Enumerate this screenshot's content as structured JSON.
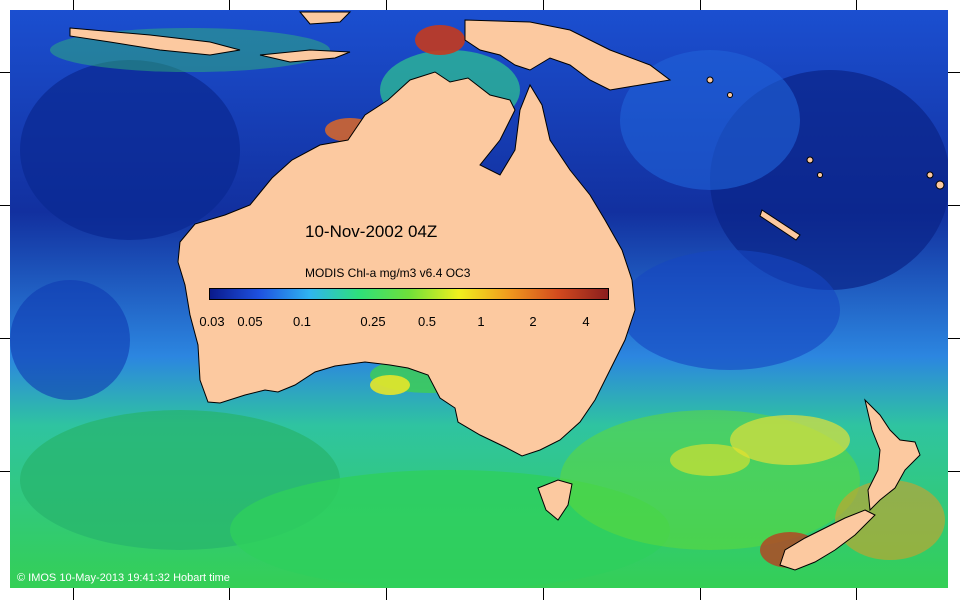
{
  "map": {
    "date_title": "10-Nov-2002 04Z",
    "colorbar": {
      "title": "MODIS Chl-a mg/m3 v6.4 OC3",
      "labels": [
        "0.03",
        "0.05",
        "0.1",
        "0.25",
        "0.5",
        "1",
        "2",
        "4"
      ],
      "colors": [
        "#0a1a8c",
        "#1e52e0",
        "#2fb4f0",
        "#2ee07a",
        "#6fe03a",
        "#f0f01e",
        "#f09a1e",
        "#d24a1e",
        "#8a1e1e"
      ]
    },
    "colors": {
      "land": "#fcc9a0",
      "ocean_low": "#0e2ea8",
      "ocean_mid": "#2b8ce8",
      "ocean_high": "#28c85a",
      "bloom": "#e8e825",
      "peak": "#c43a1e"
    }
  },
  "footer": {
    "credit": "© IMOS 10-May-2013 19:41:32 Hobart time"
  }
}
